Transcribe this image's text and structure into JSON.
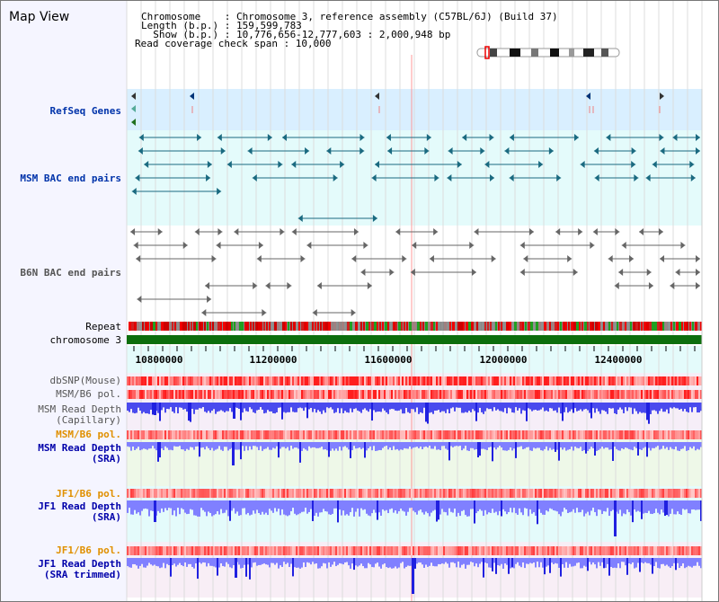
{
  "view": {
    "title": "Map View",
    "header": {
      "chromosome_line": "Chromosome    : Chromosome 3, reference assembly (C57BL/6J) (Build 37)",
      "length_line": "Length (b.p.) : 159,599,783",
      "show_line": "  Show (b.p.) : 10,776,656-12,777,603 : 2,000,948 bp",
      "coverage_line": "Read coverage check span : 10,000"
    }
  },
  "tracks": {
    "refseq": "RefSeq Genes",
    "msm_bac": "MSM BAC end pairs",
    "b6n_bac": "B6N BAC end pairs",
    "repeat": "Repeat",
    "chromosome": "chromosome 3",
    "dbsnp": "dbSNP(Mouse)",
    "msm_b6_pol_1": "MSM/B6 pol.",
    "msm_read_depth_cap_1": "MSM Read Depth",
    "msm_read_depth_cap_2": "(Capillary)",
    "msm_b6_pol_2": "MSM/B6 pol.",
    "msm_read_depth_sra_1": "MSM Read Depth",
    "msm_read_depth_sra_2": "(SRA)",
    "jf1_b6_pol_1": "JF1/B6 pol.",
    "jf1_read_depth_sra_1": "JF1 Read Depth",
    "jf1_read_depth_sra_2": "(SRA)",
    "jf1_b6_pol_2": "JF1/B6 pol.",
    "jf1_read_depth_trim_1": "JF1 Read Depth",
    "jf1_read_depth_trim_2": "(SRA trimmed)"
  },
  "axis": {
    "ticks": [
      "10800000",
      "11200000",
      "11600000",
      "12000000",
      "12400000"
    ],
    "tick_values": [
      10800000,
      11200000,
      11600000,
      12000000,
      12400000
    ],
    "range": [
      10776656,
      12777603
    ]
  },
  "colors": {
    "refseq_bg": "#d9efff",
    "msm_bg": "#e4fbfb",
    "depth_color": "#8080ff",
    "depth_peak": "#2020e0",
    "pol_color": "#e83030",
    "chromosome": "#0d6e0d"
  }
}
